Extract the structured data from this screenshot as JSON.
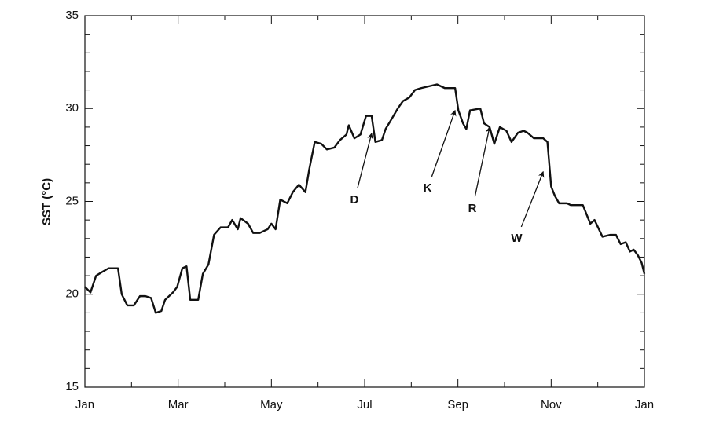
{
  "chart_data": {
    "type": "line",
    "ylabel": "SST (°C)",
    "xlim": [
      0,
      12
    ],
    "xticks": [
      {
        "value": 0,
        "label": "Jan"
      },
      {
        "value": 2,
        "label": "Mar"
      },
      {
        "value": 4,
        "label": "May"
      },
      {
        "value": 6,
        "label": "Jul"
      },
      {
        "value": 8,
        "label": "Sep"
      },
      {
        "value": 10,
        "label": "Nov"
      },
      {
        "value": 12,
        "label": "Jan"
      }
    ],
    "xminorticks": [
      1,
      3,
      5,
      7,
      9,
      11
    ],
    "ylim": [
      15,
      35
    ],
    "yticks": [
      15,
      20,
      25,
      30,
      35
    ],
    "yminorticks": [
      16,
      17,
      18,
      19,
      21,
      22,
      23,
      24,
      26,
      27,
      28,
      29,
      31,
      32,
      33,
      34
    ],
    "series": [
      {
        "color": "#111111",
        "x": [
          0,
          0.12,
          0.24,
          0.37,
          0.51,
          0.71,
          0.79,
          0.91,
          1.05,
          1.18,
          1.3,
          1.42,
          1.52,
          1.64,
          1.72,
          1.89,
          1.98,
          2.09,
          2.18,
          2.26,
          2.43,
          2.53,
          2.65,
          2.77,
          2.91,
          3.07,
          3.16,
          3.28,
          3.34,
          3.5,
          3.61,
          3.75,
          3.92,
          4.0,
          4.09,
          4.19,
          4.34,
          4.46,
          4.59,
          4.73,
          4.81,
          4.93,
          5.07,
          5.19,
          5.35,
          5.47,
          5.61,
          5.66,
          5.78,
          5.91,
          6.03,
          6.15,
          6.23,
          6.37,
          6.45,
          6.57,
          6.71,
          6.82,
          6.96,
          7.08,
          7.21,
          7.38,
          7.55,
          7.72,
          7.94,
          8.01,
          8.11,
          8.18,
          8.26,
          8.48,
          8.56,
          8.68,
          8.78,
          8.9,
          9.04,
          9.15,
          9.29,
          9.41,
          9.49,
          9.63,
          9.83,
          9.92,
          10.0,
          10.08,
          10.17,
          10.34,
          10.42,
          10.68,
          10.76,
          10.84,
          10.93,
          11.1,
          11.27,
          11.39,
          11.49,
          11.6,
          11.69,
          11.77,
          11.86,
          11.94,
          12.0
        ],
        "values": [
          20.4,
          20.1,
          21.0,
          21.2,
          21.4,
          21.4,
          20.0,
          19.4,
          19.4,
          19.9,
          19.9,
          19.8,
          19.0,
          19.1,
          19.7,
          20.1,
          20.4,
          21.4,
          21.5,
          19.7,
          19.7,
          21.1,
          21.6,
          23.2,
          23.6,
          23.6,
          24.0,
          23.5,
          24.1,
          23.8,
          23.3,
          23.3,
          23.5,
          23.8,
          23.5,
          25.1,
          24.9,
          25.5,
          25.9,
          25.5,
          26.7,
          28.2,
          28.1,
          27.8,
          27.9,
          28.3,
          28.6,
          29.1,
          28.4,
          28.6,
          29.6,
          29.6,
          28.2,
          28.3,
          28.9,
          29.4,
          30.0,
          30.4,
          30.6,
          31.0,
          31.1,
          31.2,
          31.3,
          31.1,
          31.1,
          29.9,
          29.2,
          28.9,
          29.9,
          30.0,
          29.2,
          29.0,
          28.1,
          29.0,
          28.8,
          28.2,
          28.7,
          28.8,
          28.7,
          28.4,
          28.4,
          28.2,
          25.8,
          25.3,
          24.9,
          24.9,
          24.8,
          24.8,
          24.3,
          23.8,
          24.0,
          23.1,
          23.2,
          23.2,
          22.7,
          22.8,
          22.3,
          22.4,
          22.1,
          21.7,
          21.1
        ]
      }
    ],
    "annotations": [
      {
        "text": "D",
        "x": 6.15,
        "y": 28.66,
        "text_x": 5.78,
        "text_y": 25.06
      },
      {
        "text": "K",
        "x": 7.94,
        "y": 29.9,
        "text_x": 7.35,
        "text_y": 25.7
      },
      {
        "text": "R",
        "x": 8.68,
        "y": 29.0,
        "text_x": 8.31,
        "text_y": 24.6
      },
      {
        "text": "W",
        "x": 9.83,
        "y": 26.6,
        "text_x": 9.26,
        "text_y": 23.0
      }
    ]
  }
}
